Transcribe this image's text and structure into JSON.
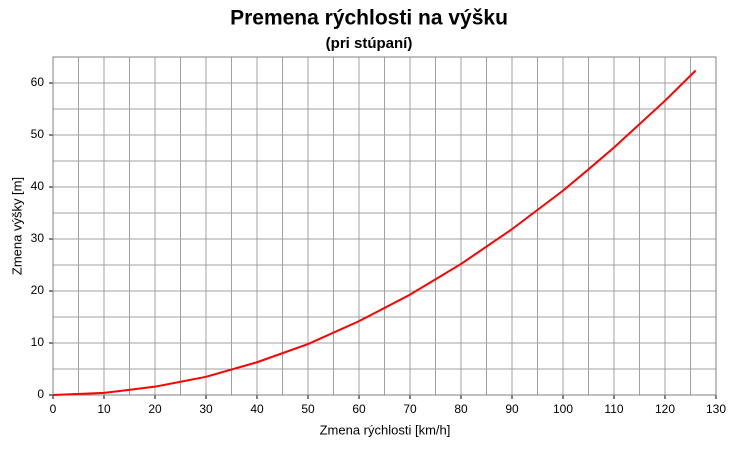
{
  "chart_data": {
    "type": "line",
    "title": "Premena rýchlosti na výšku",
    "subtitle": "(pri stúpaní)",
    "x_label": "Zmena rýchlosti [km/h]",
    "y_label": "Zmena výšky [m]",
    "x": [
      0,
      10,
      20,
      30,
      40,
      50,
      60,
      70,
      80,
      90,
      100,
      105,
      110,
      120,
      126
    ],
    "series": [
      {
        "name": "Zmena výšky",
        "color": "#ff0000",
        "values": [
          0,
          0.4,
          1.6,
          3.5,
          6.3,
          9.8,
          14.2,
          19.3,
          25.2,
          31.9,
          39.3,
          43.4,
          47.6,
          56.6,
          62.4
        ]
      }
    ],
    "xlim": [
      0,
      130
    ],
    "xticks": [
      0,
      10,
      20,
      30,
      40,
      50,
      60,
      70,
      80,
      90,
      100,
      110,
      120,
      130
    ],
    "ylim": [
      0,
      65
    ],
    "yticks": [
      0,
      10,
      20,
      30,
      40,
      50,
      60
    ],
    "grid": true,
    "legend": false
  }
}
